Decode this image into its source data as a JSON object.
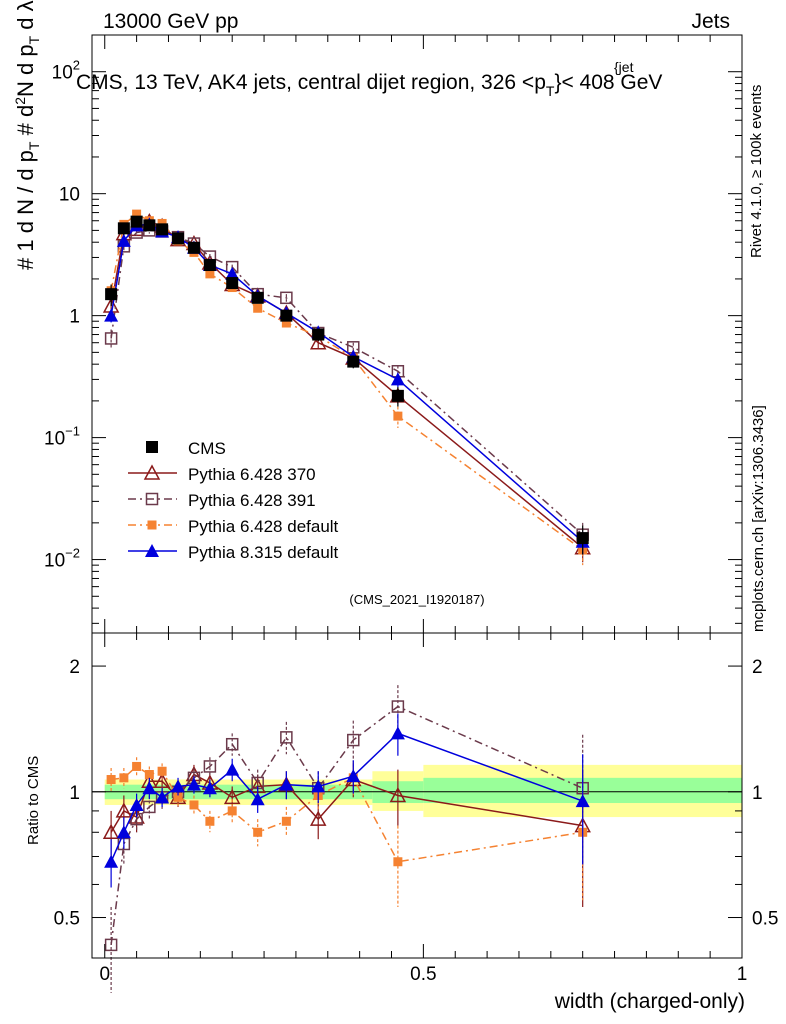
{
  "header": {
    "left": "13000 GeV pp",
    "right": "Jets"
  },
  "plot_title": "CMS, 13 TeV, AK4 jets, central dijet region, 326 <p",
  "plot_title_sub": "T",
  "plot_title_sup": "{jet",
  "plot_title_end": "}< 408 GeV",
  "right_labels": {
    "rivet": "Rivet 4.1.0, ≥ 100k events",
    "mcplots": "mcplots.cern.ch [arXiv:1306.3436]"
  },
  "watermark": "(CMS_2021_I1920187)",
  "chart_data": [
    {
      "type": "scatter",
      "name": "main",
      "yscale": "log",
      "ylim": [
        0.0025,
        200
      ],
      "xlim": [
        -0.02,
        1.0
      ],
      "ylabel_parts": [
        "#",
        "1",
        "d N / d p",
        "T",
        "#",
        "d",
        "2",
        "N",
        "d p",
        "T",
        "d λ"
      ],
      "y_ticks": [
        {
          "value": 0.01,
          "label": "10",
          "exp": "−2"
        },
        {
          "value": 0.1,
          "label": "10",
          "exp": "−1"
        },
        {
          "value": 1,
          "label": "1",
          "exp": ""
        },
        {
          "value": 10,
          "label": "10",
          "exp": ""
        },
        {
          "value": 100,
          "label": "10",
          "exp": "2"
        }
      ],
      "series": [
        {
          "name": "CMS",
          "color": "#000000",
          "x": [
            0.01,
            0.03,
            0.05,
            0.07,
            0.09,
            0.115,
            0.14,
            0.165,
            0.2,
            0.24,
            0.285,
            0.335,
            0.39,
            0.46,
            0.75
          ],
          "y": [
            1.5,
            5.2,
            5.9,
            5.5,
            5.1,
            4.3,
            3.6,
            2.6,
            1.85,
            1.4,
            1.0,
            0.7,
            0.42,
            0.22,
            0.015
          ],
          "err": [
            0.3,
            0.6,
            0.6,
            0.5,
            0.4,
            0.3,
            0.3,
            0.2,
            0.15,
            0.12,
            0.1,
            0.08,
            0.05,
            0.04,
            0.004
          ]
        },
        {
          "name": "Pythia 6.428 370",
          "color": "#8b1a1a",
          "x": [
            0.01,
            0.03,
            0.05,
            0.07,
            0.09,
            0.115,
            0.14,
            0.165,
            0.2,
            0.24,
            0.285,
            0.335,
            0.39,
            0.46,
            0.75
          ],
          "y": [
            1.2,
            4.7,
            5.1,
            5.9,
            5.4,
            4.2,
            3.9,
            2.7,
            1.8,
            1.45,
            1.05,
            0.6,
            0.45,
            0.22,
            0.0125
          ],
          "err": [
            0.15,
            0.3,
            0.3,
            0.3,
            0.3,
            0.2,
            0.2,
            0.15,
            0.1,
            0.1,
            0.08,
            0.06,
            0.05,
            0.03,
            0.003
          ]
        },
        {
          "name": "Pythia 6.428 391",
          "color": "#6b3a4b",
          "x": [
            0.01,
            0.03,
            0.05,
            0.07,
            0.09,
            0.115,
            0.14,
            0.165,
            0.2,
            0.24,
            0.285,
            0.335,
            0.39,
            0.46,
            0.75
          ],
          "y": [
            0.65,
            3.7,
            4.8,
            5.0,
            4.9,
            4.4,
            3.9,
            3.05,
            2.5,
            1.5,
            1.4,
            0.72,
            0.55,
            0.35,
            0.016
          ],
          "err": [
            0.12,
            0.3,
            0.3,
            0.3,
            0.3,
            0.2,
            0.2,
            0.15,
            0.12,
            0.1,
            0.1,
            0.06,
            0.05,
            0.04,
            0.004
          ]
        },
        {
          "name": "Pythia 6.428 default",
          "color": "#f58231",
          "x": [
            0.01,
            0.03,
            0.05,
            0.07,
            0.09,
            0.115,
            0.14,
            0.165,
            0.2,
            0.24,
            0.285,
            0.335,
            0.39,
            0.46,
            0.75
          ],
          "y": [
            1.6,
            5.6,
            6.8,
            6.0,
            5.7,
            4.1,
            3.3,
            2.2,
            1.7,
            1.15,
            0.87,
            0.68,
            0.45,
            0.15,
            0.012
          ],
          "err": [
            0.2,
            0.4,
            0.4,
            0.3,
            0.3,
            0.2,
            0.2,
            0.15,
            0.12,
            0.1,
            0.08,
            0.06,
            0.05,
            0.03,
            0.003
          ]
        },
        {
          "name": "Pythia 8.315 default",
          "color": "#0000dd",
          "x": [
            0.01,
            0.03,
            0.05,
            0.07,
            0.09,
            0.115,
            0.14,
            0.165,
            0.2,
            0.24,
            0.285,
            0.335,
            0.39,
            0.46,
            0.75
          ],
          "y": [
            1.0,
            4.1,
            5.5,
            5.6,
            4.9,
            4.4,
            3.6,
            2.6,
            2.2,
            1.45,
            1.05,
            0.73,
            0.46,
            0.3,
            0.014
          ],
          "err": [
            0.12,
            0.3,
            0.3,
            0.3,
            0.3,
            0.2,
            0.2,
            0.15,
            0.12,
            0.1,
            0.08,
            0.06,
            0.05,
            0.04,
            0.003
          ]
        }
      ],
      "legend": [
        "CMS",
        "Pythia 6.428 370",
        "Pythia 6.428 391",
        "Pythia 6.428 default",
        "Pythia 8.315 default"
      ]
    },
    {
      "type": "scatter",
      "name": "ratio",
      "yscale": "log",
      "ylim": [
        0.4,
        2.4
      ],
      "xlim": [
        -0.02,
        1.0
      ],
      "ylabel": "Ratio to CMS",
      "y_ticks": [
        {
          "value": 0.5,
          "label": "0.5"
        },
        {
          "value": 1,
          "label": "1"
        },
        {
          "value": 2,
          "label": "2"
        }
      ],
      "x_ticks": [
        {
          "value": 0,
          "label": "0"
        },
        {
          "value": 0.5,
          "label": "0.5"
        },
        {
          "value": 1,
          "label": "1"
        }
      ],
      "xlabel": "width (charged-only)",
      "bands": [
        {
          "x0": 0.0,
          "x1": 0.42,
          "inner": [
            0.96,
            1.04
          ],
          "outer": [
            0.93,
            1.07
          ]
        },
        {
          "x0": 0.42,
          "x1": 0.5,
          "inner": [
            0.94,
            1.06
          ],
          "outer": [
            0.9,
            1.12
          ]
        },
        {
          "x0": 0.5,
          "x1": 1.0,
          "inner": [
            0.94,
            1.08
          ],
          "outer": [
            0.87,
            1.16
          ]
        }
      ],
      "series": [
        {
          "name": "Pythia 6.428 370",
          "color": "#8b1a1a",
          "x": [
            0.01,
            0.03,
            0.05,
            0.07,
            0.09,
            0.115,
            0.14,
            0.165,
            0.2,
            0.24,
            0.285,
            0.335,
            0.39,
            0.46,
            0.75
          ],
          "y": [
            0.8,
            0.9,
            0.87,
            1.06,
            1.06,
            0.97,
            1.1,
            1.05,
            0.97,
            1.03,
            1.04,
            0.86,
            1.07,
            0.98,
            0.83
          ],
          "err": [
            0.1,
            0.08,
            0.07,
            0.06,
            0.06,
            0.05,
            0.06,
            0.06,
            0.06,
            0.07,
            0.08,
            0.09,
            0.1,
            0.15,
            0.3
          ]
        },
        {
          "name": "Pythia 6.428 391",
          "color": "#6b3a4b",
          "x": [
            0.01,
            0.03,
            0.05,
            0.07,
            0.09,
            0.115,
            0.14,
            0.165,
            0.2,
            0.24,
            0.285,
            0.335,
            0.39,
            0.46,
            0.75
          ],
          "y": [
            0.43,
            0.75,
            0.86,
            0.92,
            0.97,
            1.0,
            1.08,
            1.15,
            1.3,
            1.05,
            1.35,
            1.02,
            1.33,
            1.6,
            1.02
          ],
          "err": [
            0.1,
            0.08,
            0.06,
            0.06,
            0.06,
            0.05,
            0.06,
            0.06,
            0.08,
            0.08,
            0.12,
            0.1,
            0.15,
            0.2,
            0.35
          ]
        },
        {
          "name": "Pythia 6.428 default",
          "color": "#f58231",
          "x": [
            0.01,
            0.03,
            0.05,
            0.07,
            0.09,
            0.115,
            0.14,
            0.165,
            0.2,
            0.24,
            0.285,
            0.335,
            0.39,
            0.46,
            0.75
          ],
          "y": [
            1.07,
            1.08,
            1.15,
            1.1,
            1.12,
            0.97,
            0.93,
            0.85,
            0.9,
            0.8,
            0.85,
            0.98,
            1.08,
            0.68,
            0.8
          ],
          "err": [
            0.07,
            0.06,
            0.06,
            0.05,
            0.05,
            0.05,
            0.05,
            0.05,
            0.06,
            0.06,
            0.07,
            0.08,
            0.1,
            0.15,
            0.25
          ]
        },
        {
          "name": "Pythia 8.315 default",
          "color": "#0000dd",
          "x": [
            0.01,
            0.03,
            0.05,
            0.07,
            0.09,
            0.115,
            0.14,
            0.165,
            0.2,
            0.24,
            0.285,
            0.335,
            0.39,
            0.46,
            0.75
          ],
          "y": [
            0.68,
            0.8,
            0.93,
            1.02,
            0.97,
            1.03,
            1.04,
            1.02,
            1.13,
            0.96,
            1.04,
            1.03,
            1.09,
            1.38,
            0.95
          ],
          "err": [
            0.09,
            0.07,
            0.06,
            0.06,
            0.05,
            0.05,
            0.05,
            0.05,
            0.07,
            0.07,
            0.08,
            0.09,
            0.1,
            0.16,
            0.28
          ]
        }
      ]
    }
  ]
}
